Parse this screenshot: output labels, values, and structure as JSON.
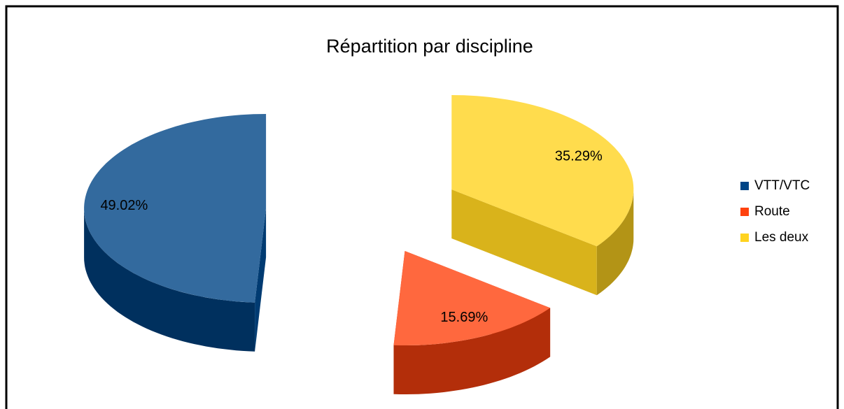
{
  "chart_data": {
    "type": "pie",
    "title": "Répartition par discipline",
    "categories": [
      "VTT/VTC",
      "Route",
      "Les deux"
    ],
    "values": [
      49.02,
      15.69,
      35.29
    ],
    "value_labels": [
      "49.02%",
      "15.69%",
      "35.29%"
    ],
    "colors": [
      "#004586",
      "#ff420e",
      "#ffd320"
    ],
    "legend": "right"
  }
}
